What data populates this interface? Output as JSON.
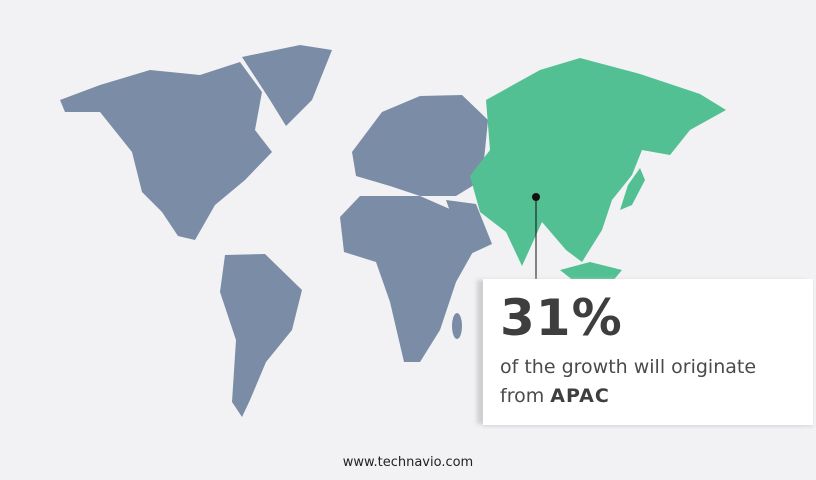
{
  "colors": {
    "background": "#f2f2f4",
    "map_land": "#7a8ca6",
    "highlight_region": "#52c093"
  },
  "map": {
    "highlighted_region": "APAC"
  },
  "callout": {
    "percent": "31%",
    "text_line1": "of the growth will originate",
    "text_line2_prefix": "from",
    "region": "APAC"
  },
  "footer": {
    "website": "www.technavio.com"
  }
}
